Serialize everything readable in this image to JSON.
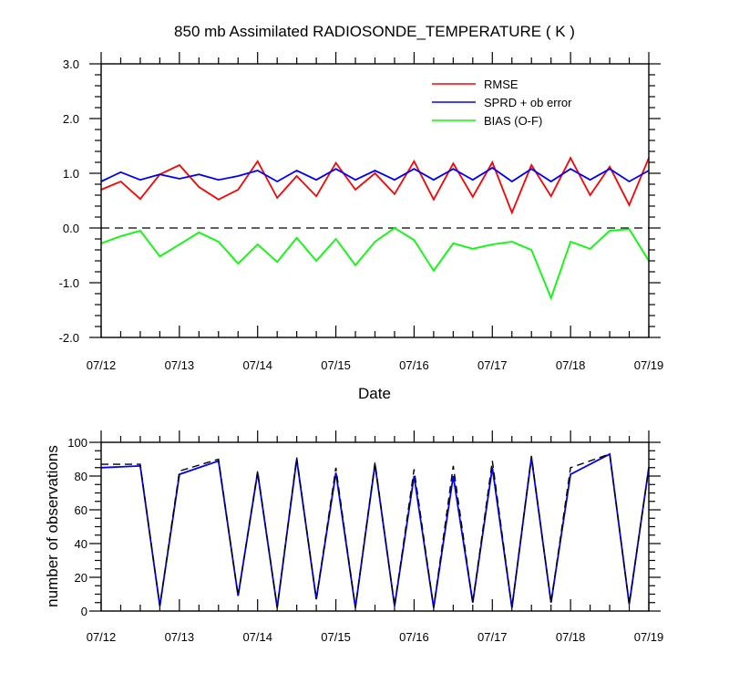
{
  "chart_data": [
    {
      "type": "line",
      "title": "850 mb Assimilated RADIOSONDE_TEMPERATURE ( K )",
      "xlabel": "Date",
      "ylabel": "",
      "xlim": [
        0,
        7
      ],
      "ylim": [
        -2.0,
        3.0
      ],
      "x_tick_labels": [
        "07/12",
        "07/13",
        "07/14",
        "07/15",
        "07/16",
        "07/17",
        "07/18",
        "07/19"
      ],
      "y_tick_labels": [
        "-2.0",
        "-1.0",
        "0.0",
        "1.0",
        "2.0",
        "3.0"
      ],
      "zero_line": true,
      "legend_position": "top-right",
      "legend_color_hint": "#0000ff",
      "x": [
        0,
        0.25,
        0.5,
        0.75,
        1,
        1.25,
        1.5,
        1.75,
        2,
        2.25,
        2.5,
        2.75,
        3,
        3.25,
        3.5,
        3.75,
        4,
        4.25,
        4.5,
        4.75,
        5,
        5.25,
        5.5,
        5.75,
        6,
        6.25,
        6.5,
        6.75,
        7
      ],
      "series": [
        {
          "name": "RMSE",
          "color": "#ff0000",
          "values": [
            0.7,
            0.85,
            0.53,
            0.98,
            1.15,
            0.75,
            0.52,
            0.7,
            1.22,
            0.55,
            0.95,
            0.58,
            1.19,
            0.7,
            1.0,
            0.62,
            1.22,
            0.52,
            1.18,
            0.57,
            1.2,
            0.28,
            1.15,
            0.58,
            1.28,
            0.6,
            1.12,
            0.42,
            1.28
          ]
        },
        {
          "name": "SPRD + ob error",
          "color": "#0000ff",
          "values": [
            0.85,
            1.02,
            0.88,
            0.98,
            0.9,
            0.98,
            0.88,
            0.95,
            1.05,
            0.85,
            1.05,
            0.88,
            1.08,
            0.88,
            1.05,
            0.88,
            1.08,
            0.88,
            1.08,
            0.88,
            1.1,
            0.85,
            1.08,
            0.85,
            1.08,
            0.88,
            1.08,
            0.85,
            1.05
          ]
        },
        {
          "name": "BIAS (O-F)",
          "color": "#00ff00",
          "values": [
            -0.28,
            -0.15,
            -0.05,
            -0.52,
            -0.3,
            -0.08,
            -0.25,
            -0.65,
            -0.3,
            -0.62,
            -0.18,
            -0.6,
            -0.2,
            -0.68,
            -0.25,
            0.0,
            -0.22,
            -0.78,
            -0.28,
            -0.38,
            -0.3,
            -0.25,
            -0.4,
            -1.28,
            -0.25,
            -0.38,
            -0.05,
            -0.02,
            -0.6
          ]
        }
      ]
    },
    {
      "type": "line",
      "title": "",
      "xlabel": "",
      "ylabel": "number of observations",
      "xlim": [
        0,
        7
      ],
      "ylim": [
        0,
        100
      ],
      "x_tick_labels": [
        "07/12",
        "07/13",
        "07/14",
        "07/15",
        "07/16",
        "07/17",
        "07/18",
        "07/19"
      ],
      "y_tick_labels": [
        "0",
        "20",
        "40",
        "60",
        "80",
        "100"
      ],
      "x": [
        0,
        0.5,
        0.75,
        1,
        1.5,
        1.75,
        2,
        2.25,
        2.5,
        2.75,
        3,
        3.25,
        3.5,
        3.75,
        4,
        4.25,
        4.5,
        4.75,
        5,
        5.25,
        5.5,
        5.75,
        6,
        6.5,
        6.75,
        7
      ],
      "series": [
        {
          "color": "#0000ff",
          "dash": "solid",
          "values": [
            85,
            86,
            3,
            81,
            89,
            9,
            82,
            2,
            90,
            7,
            82,
            2,
            87,
            3,
            80,
            2,
            80,
            5,
            85,
            2,
            91,
            5,
            81,
            93,
            4,
            85
          ]
        },
        {
          "color": "#000000",
          "dash": "dashed",
          "values": [
            87,
            87,
            3,
            83,
            90,
            9,
            83,
            2,
            91,
            7,
            85,
            2,
            88,
            3,
            84,
            2,
            86,
            5,
            89,
            2,
            92,
            5,
            85,
            93,
            4,
            85
          ]
        }
      ]
    }
  ]
}
